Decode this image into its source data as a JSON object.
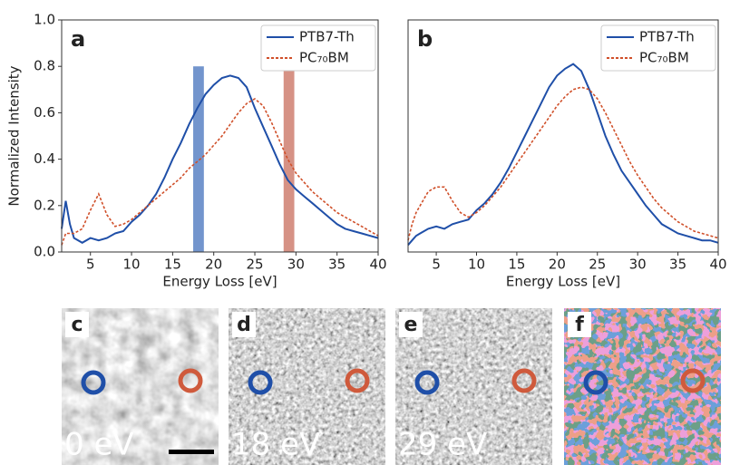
{
  "chart_data": [
    {
      "type": "line",
      "panel_label": "a",
      "xlabel": "Energy Loss [eV]",
      "ylabel": "Normalized Intensity",
      "xlim": [
        1.5,
        40
      ],
      "ylim": [
        0,
        1.0
      ],
      "xticks": [
        5,
        10,
        15,
        20,
        25,
        30,
        35,
        40
      ],
      "yticks": [
        {
          "value": 0,
          "label": "0.0"
        },
        {
          "value": 0.2,
          "label": "0.2"
        },
        {
          "value": 0.4,
          "label": "0.4"
        },
        {
          "value": 0.6,
          "label": "0.6"
        },
        {
          "value": 0.8,
          "label": "0.8"
        },
        {
          "value": 1.0,
          "label": "1.0"
        }
      ],
      "legend": "upper right",
      "highlights": [
        {
          "x": [
            17.5,
            18.8
          ],
          "color": "#5b82c4"
        },
        {
          "x": [
            28.5,
            29.8
          ],
          "color": "#cf7f70"
        }
      ],
      "x": [
        1.5,
        2,
        2.5,
        3,
        4,
        5,
        6,
        7,
        8,
        9,
        10,
        11,
        12,
        13,
        14,
        15,
        16,
        17,
        18,
        19,
        20,
        21,
        22,
        23,
        24,
        25,
        26,
        27,
        28,
        29,
        30,
        31,
        32,
        33,
        34,
        35,
        36,
        37,
        38,
        39,
        40
      ],
      "series": [
        {
          "name": "PTB7-Th",
          "color": "#1f4fa8",
          "linestyle": "solid",
          "values": [
            0.1,
            0.22,
            0.12,
            0.06,
            0.04,
            0.06,
            0.05,
            0.06,
            0.08,
            0.09,
            0.13,
            0.16,
            0.2,
            0.25,
            0.32,
            0.4,
            0.47,
            0.55,
            0.62,
            0.68,
            0.72,
            0.75,
            0.76,
            0.75,
            0.71,
            0.62,
            0.54,
            0.46,
            0.38,
            0.31,
            0.27,
            0.24,
            0.21,
            0.18,
            0.15,
            0.12,
            0.1,
            0.09,
            0.08,
            0.07,
            0.06
          ]
        },
        {
          "name": "PC₇₀BM",
          "color": "#d0502a",
          "linestyle": "dashed",
          "values": [
            0.03,
            0.08,
            0.08,
            0.08,
            0.1,
            0.18,
            0.25,
            0.16,
            0.11,
            0.12,
            0.14,
            0.17,
            0.2,
            0.23,
            0.26,
            0.29,
            0.32,
            0.36,
            0.39,
            0.42,
            0.46,
            0.5,
            0.55,
            0.6,
            0.64,
            0.66,
            0.63,
            0.56,
            0.48,
            0.4,
            0.34,
            0.3,
            0.26,
            0.23,
            0.2,
            0.17,
            0.15,
            0.13,
            0.11,
            0.09,
            0.07
          ]
        }
      ]
    },
    {
      "type": "line",
      "panel_label": "b",
      "xlabel": "Energy Loss [eV]",
      "xlim": [
        1.5,
        40
      ],
      "ylim": [
        0,
        1.0
      ],
      "xticks": [
        5,
        10,
        15,
        20,
        25,
        30,
        35,
        40
      ],
      "legend": "upper right",
      "x": [
        1.5,
        2,
        2.5,
        3,
        4,
        5,
        6,
        7,
        8,
        9,
        10,
        11,
        12,
        13,
        14,
        15,
        16,
        17,
        18,
        19,
        20,
        21,
        22,
        23,
        24,
        25,
        26,
        27,
        28,
        29,
        30,
        31,
        32,
        33,
        34,
        35,
        36,
        37,
        38,
        39,
        40
      ],
      "series": [
        {
          "name": "PTB7-Th",
          "color": "#1f4fa8",
          "linestyle": "solid",
          "values": [
            0.03,
            0.05,
            0.07,
            0.08,
            0.1,
            0.11,
            0.1,
            0.12,
            0.13,
            0.14,
            0.18,
            0.21,
            0.25,
            0.3,
            0.36,
            0.43,
            0.5,
            0.57,
            0.64,
            0.71,
            0.76,
            0.79,
            0.81,
            0.78,
            0.7,
            0.6,
            0.5,
            0.42,
            0.35,
            0.3,
            0.25,
            0.2,
            0.16,
            0.12,
            0.1,
            0.08,
            0.07,
            0.06,
            0.05,
            0.05,
            0.04
          ]
        },
        {
          "name": "PC₇₀BM",
          "color": "#d0502a",
          "linestyle": "dashed",
          "values": [
            0.05,
            0.12,
            0.17,
            0.2,
            0.26,
            0.28,
            0.28,
            0.22,
            0.17,
            0.15,
            0.17,
            0.2,
            0.24,
            0.28,
            0.33,
            0.38,
            0.43,
            0.48,
            0.53,
            0.58,
            0.63,
            0.67,
            0.7,
            0.71,
            0.7,
            0.66,
            0.6,
            0.53,
            0.46,
            0.39,
            0.33,
            0.28,
            0.23,
            0.19,
            0.16,
            0.13,
            0.11,
            0.09,
            0.08,
            0.07,
            0.06
          ]
        }
      ]
    }
  ],
  "panels": [
    {
      "label": "c",
      "energy": "0 eV"
    },
    {
      "label": "d",
      "energy": "18 eV"
    },
    {
      "label": "e",
      "energy": "29 eV"
    },
    {
      "label": "f"
    }
  ]
}
